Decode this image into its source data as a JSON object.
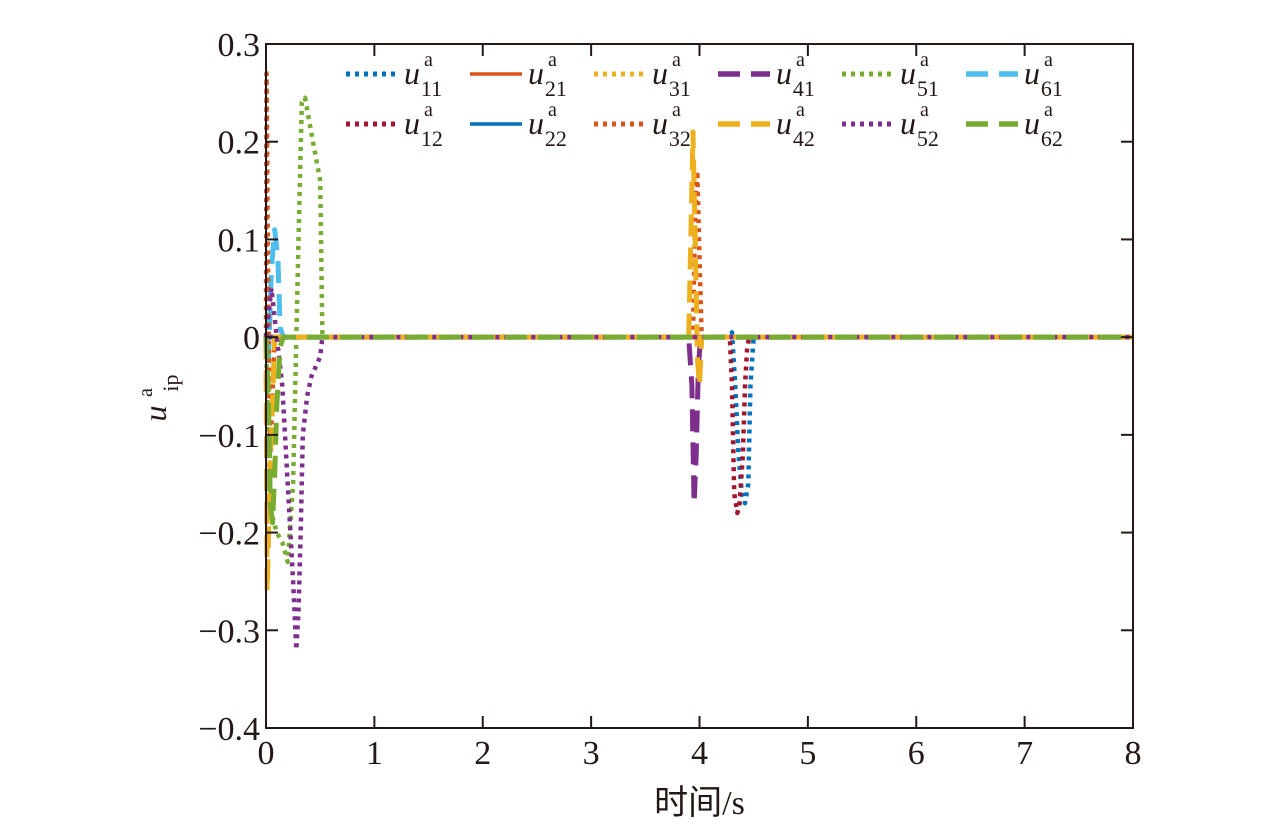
{
  "chart_data": {
    "type": "line",
    "xlabel": "时间/s",
    "ylabel": "u^a_ip",
    "ylabel_main": "u",
    "ylabel_sup": "a",
    "ylabel_sub": "ip",
    "xlim": [
      0,
      8
    ],
    "ylim": [
      -0.4,
      0.3
    ],
    "x_ticks": [
      0,
      1,
      2,
      3,
      4,
      5,
      6,
      7,
      8
    ],
    "y_ticks": [
      0.3,
      0.2,
      0.1,
      0,
      -0.1,
      -0.2,
      -0.3,
      -0.4
    ],
    "x_tick_labels": [
      "0",
      "1",
      "2",
      "3",
      "4",
      "5",
      "6",
      "7",
      "8"
    ],
    "y_tick_labels": [
      "0.3",
      "0.2",
      "0.1",
      "0",
      "−0.1",
      "−0.2",
      "−0.3",
      "−0.4"
    ],
    "grid": false,
    "legend_position": "top",
    "series": [
      {
        "name": "u^a_11",
        "main": "u",
        "sup": "a",
        "sub": "11",
        "color": "#0072BD",
        "dash": "dot",
        "x": [
          0,
          4.28,
          4.3,
          4.33,
          4.36,
          4.39,
          4.42,
          4.45,
          4.47,
          4.5,
          8
        ],
        "y": [
          0,
          0,
          0.005,
          -0.05,
          -0.12,
          -0.16,
          -0.17,
          -0.15,
          -0.05,
          0,
          0
        ]
      },
      {
        "name": "u^a_21",
        "main": "u",
        "sup": "a",
        "sub": "21",
        "color": "#D95319",
        "dash": "solid",
        "x": [
          0,
          8
        ],
        "y": [
          0,
          0
        ]
      },
      {
        "name": "u^a_31",
        "main": "u",
        "sup": "a",
        "sub": "31",
        "color": "#EDB120",
        "dash": "dot",
        "x": [
          0,
          8
        ],
        "y": [
          0,
          0
        ]
      },
      {
        "name": "u^a_41",
        "main": "u",
        "sup": "a",
        "sub": "41",
        "color": "#7E2F8E",
        "dash": "dash",
        "x": [
          0,
          3.9,
          3.93,
          3.95,
          3.97,
          3.99,
          4.01,
          8
        ],
        "y": [
          0,
          0,
          -0.05,
          -0.17,
          -0.12,
          -0.03,
          0,
          0
        ]
      },
      {
        "name": "u^a_51",
        "main": "u",
        "sup": "a",
        "sub": "51",
        "color": "#77AC30",
        "dash": "dot",
        "x": [
          0,
          0.02,
          0.05,
          0.1,
          0.15,
          0.2,
          0.25,
          0.3,
          0.33,
          0.36,
          0.4,
          0.45,
          0.5,
          0.52,
          0.55,
          8
        ],
        "y": [
          0,
          -0.1,
          -0.18,
          -0.2,
          -0.21,
          -0.23,
          -0.15,
          0.1,
          0.24,
          0.245,
          0.22,
          0.19,
          0.16,
          0,
          0,
          0
        ]
      },
      {
        "name": "u^a_61",
        "main": "u",
        "sup": "a",
        "sub": "61",
        "color": "#4DBEEE",
        "dash": "dash",
        "x": [
          0,
          0.02,
          0.05,
          0.08,
          0.11,
          0.13,
          0.16,
          8
        ],
        "y": [
          0,
          -0.03,
          0.07,
          0.11,
          0.08,
          0.01,
          0,
          0
        ]
      },
      {
        "name": "u^a_12",
        "main": "u",
        "sup": "a",
        "sub": "12",
        "color": "#A2142F",
        "dash": "dot",
        "x": [
          0,
          4.28,
          4.3,
          4.32,
          4.35,
          4.37,
          4.4,
          4.42,
          4.44,
          4.46,
          8
        ],
        "y": [
          0,
          0,
          -0.05,
          -0.16,
          -0.18,
          -0.17,
          -0.12,
          -0.05,
          -0.01,
          0,
          0
        ]
      },
      {
        "name": "u^a_22",
        "main": "u",
        "sup": "a",
        "sub": "22",
        "color": "#0072BD",
        "dash": "solid",
        "x": [
          0,
          8
        ],
        "y": [
          0,
          0
        ]
      },
      {
        "name": "u^a_32",
        "main": "u",
        "sup": "a",
        "sub": "32",
        "color": "#D95319",
        "dash": "dot",
        "x": [
          0,
          0.005,
          0.01,
          0.02,
          0.03,
          0.04,
          0.06,
          0.08,
          0.1,
          3.94,
          3.96,
          3.98,
          4.0,
          4.02,
          8
        ],
        "y": [
          0,
          0.27,
          0.2,
          0.05,
          -0.05,
          -0.12,
          -0.06,
          0,
          0,
          0,
          0.13,
          0.17,
          0.08,
          0,
          0
        ]
      },
      {
        "name": "u^a_42",
        "main": "u",
        "sup": "a",
        "sub": "42",
        "color": "#EDB120",
        "dash": "dash",
        "x": [
          0,
          0.01,
          0.02,
          0.03,
          0.05,
          0.08,
          3.9,
          3.92,
          3.94,
          3.96,
          3.98,
          4.0,
          4.02,
          8
        ],
        "y": [
          0,
          -0.26,
          -0.22,
          -0.15,
          -0.1,
          0,
          0,
          0.1,
          0.21,
          0.1,
          -0.02,
          -0.05,
          0,
          0
        ]
      },
      {
        "name": "u^a_52",
        "main": "u",
        "sup": "a",
        "sub": "52",
        "color": "#7E2F8E",
        "dash": "dot",
        "x": [
          0,
          0.05,
          0.1,
          0.15,
          0.2,
          0.25,
          0.28,
          0.3,
          0.32,
          0.34,
          0.38,
          0.42,
          0.46,
          0.5,
          0.52,
          0.55,
          8
        ],
        "y": [
          0,
          0.05,
          0,
          -0.05,
          -0.15,
          -0.25,
          -0.32,
          -0.28,
          -0.2,
          -0.1,
          -0.06,
          -0.04,
          -0.03,
          -0.02,
          0,
          0,
          0
        ]
      },
      {
        "name": "u^a_62",
        "main": "u",
        "sup": "a",
        "sub": "62",
        "color": "#77AC30",
        "dash": "dash",
        "x": [
          0,
          0.02,
          0.04,
          0.06,
          0.08,
          0.1,
          0.13,
          0.16,
          8
        ],
        "y": [
          0,
          -0.05,
          -0.17,
          -0.19,
          -0.14,
          -0.07,
          -0.01,
          0,
          0
        ]
      }
    ]
  }
}
